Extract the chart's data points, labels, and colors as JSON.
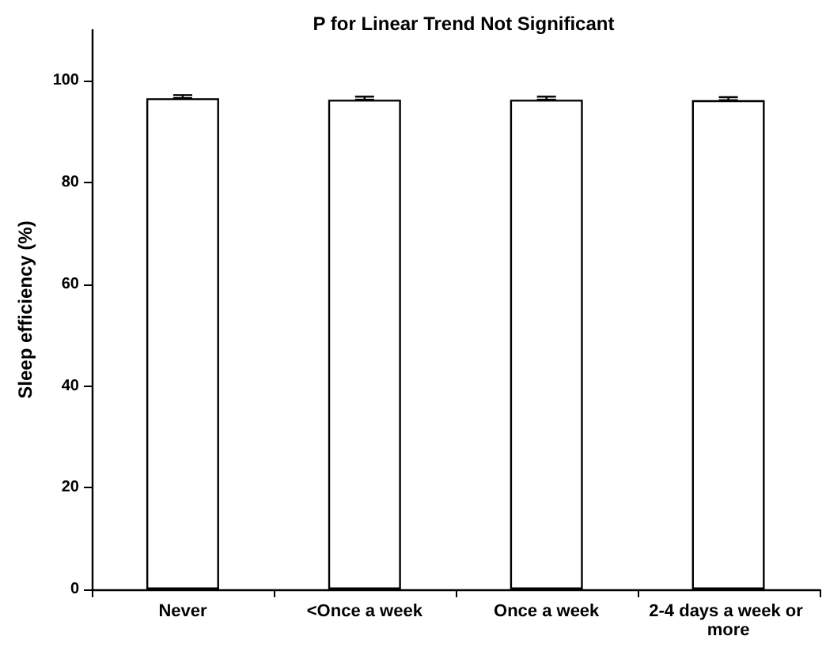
{
  "chart_data": {
    "type": "bar",
    "title": "P for Linear Trend Not Significant",
    "ylabel": "Sleep efficiency (%)",
    "categories": [
      "Never",
      "<Once a week",
      "Once a week",
      "2-4 days a week or more"
    ],
    "values": [
      96.6,
      96.3,
      96.3,
      96.2
    ],
    "color": "#ffffff",
    "errors": [
      [
        96.6,
        97.2
      ],
      [
        96.3,
        96.9
      ],
      [
        96.3,
        96.9
      ],
      [
        96.2,
        96.8
      ]
    ],
    "ylim": [
      0,
      110
    ],
    "yticks": [
      0,
      20,
      40,
      60,
      80,
      100
    ],
    "grid": false
  }
}
